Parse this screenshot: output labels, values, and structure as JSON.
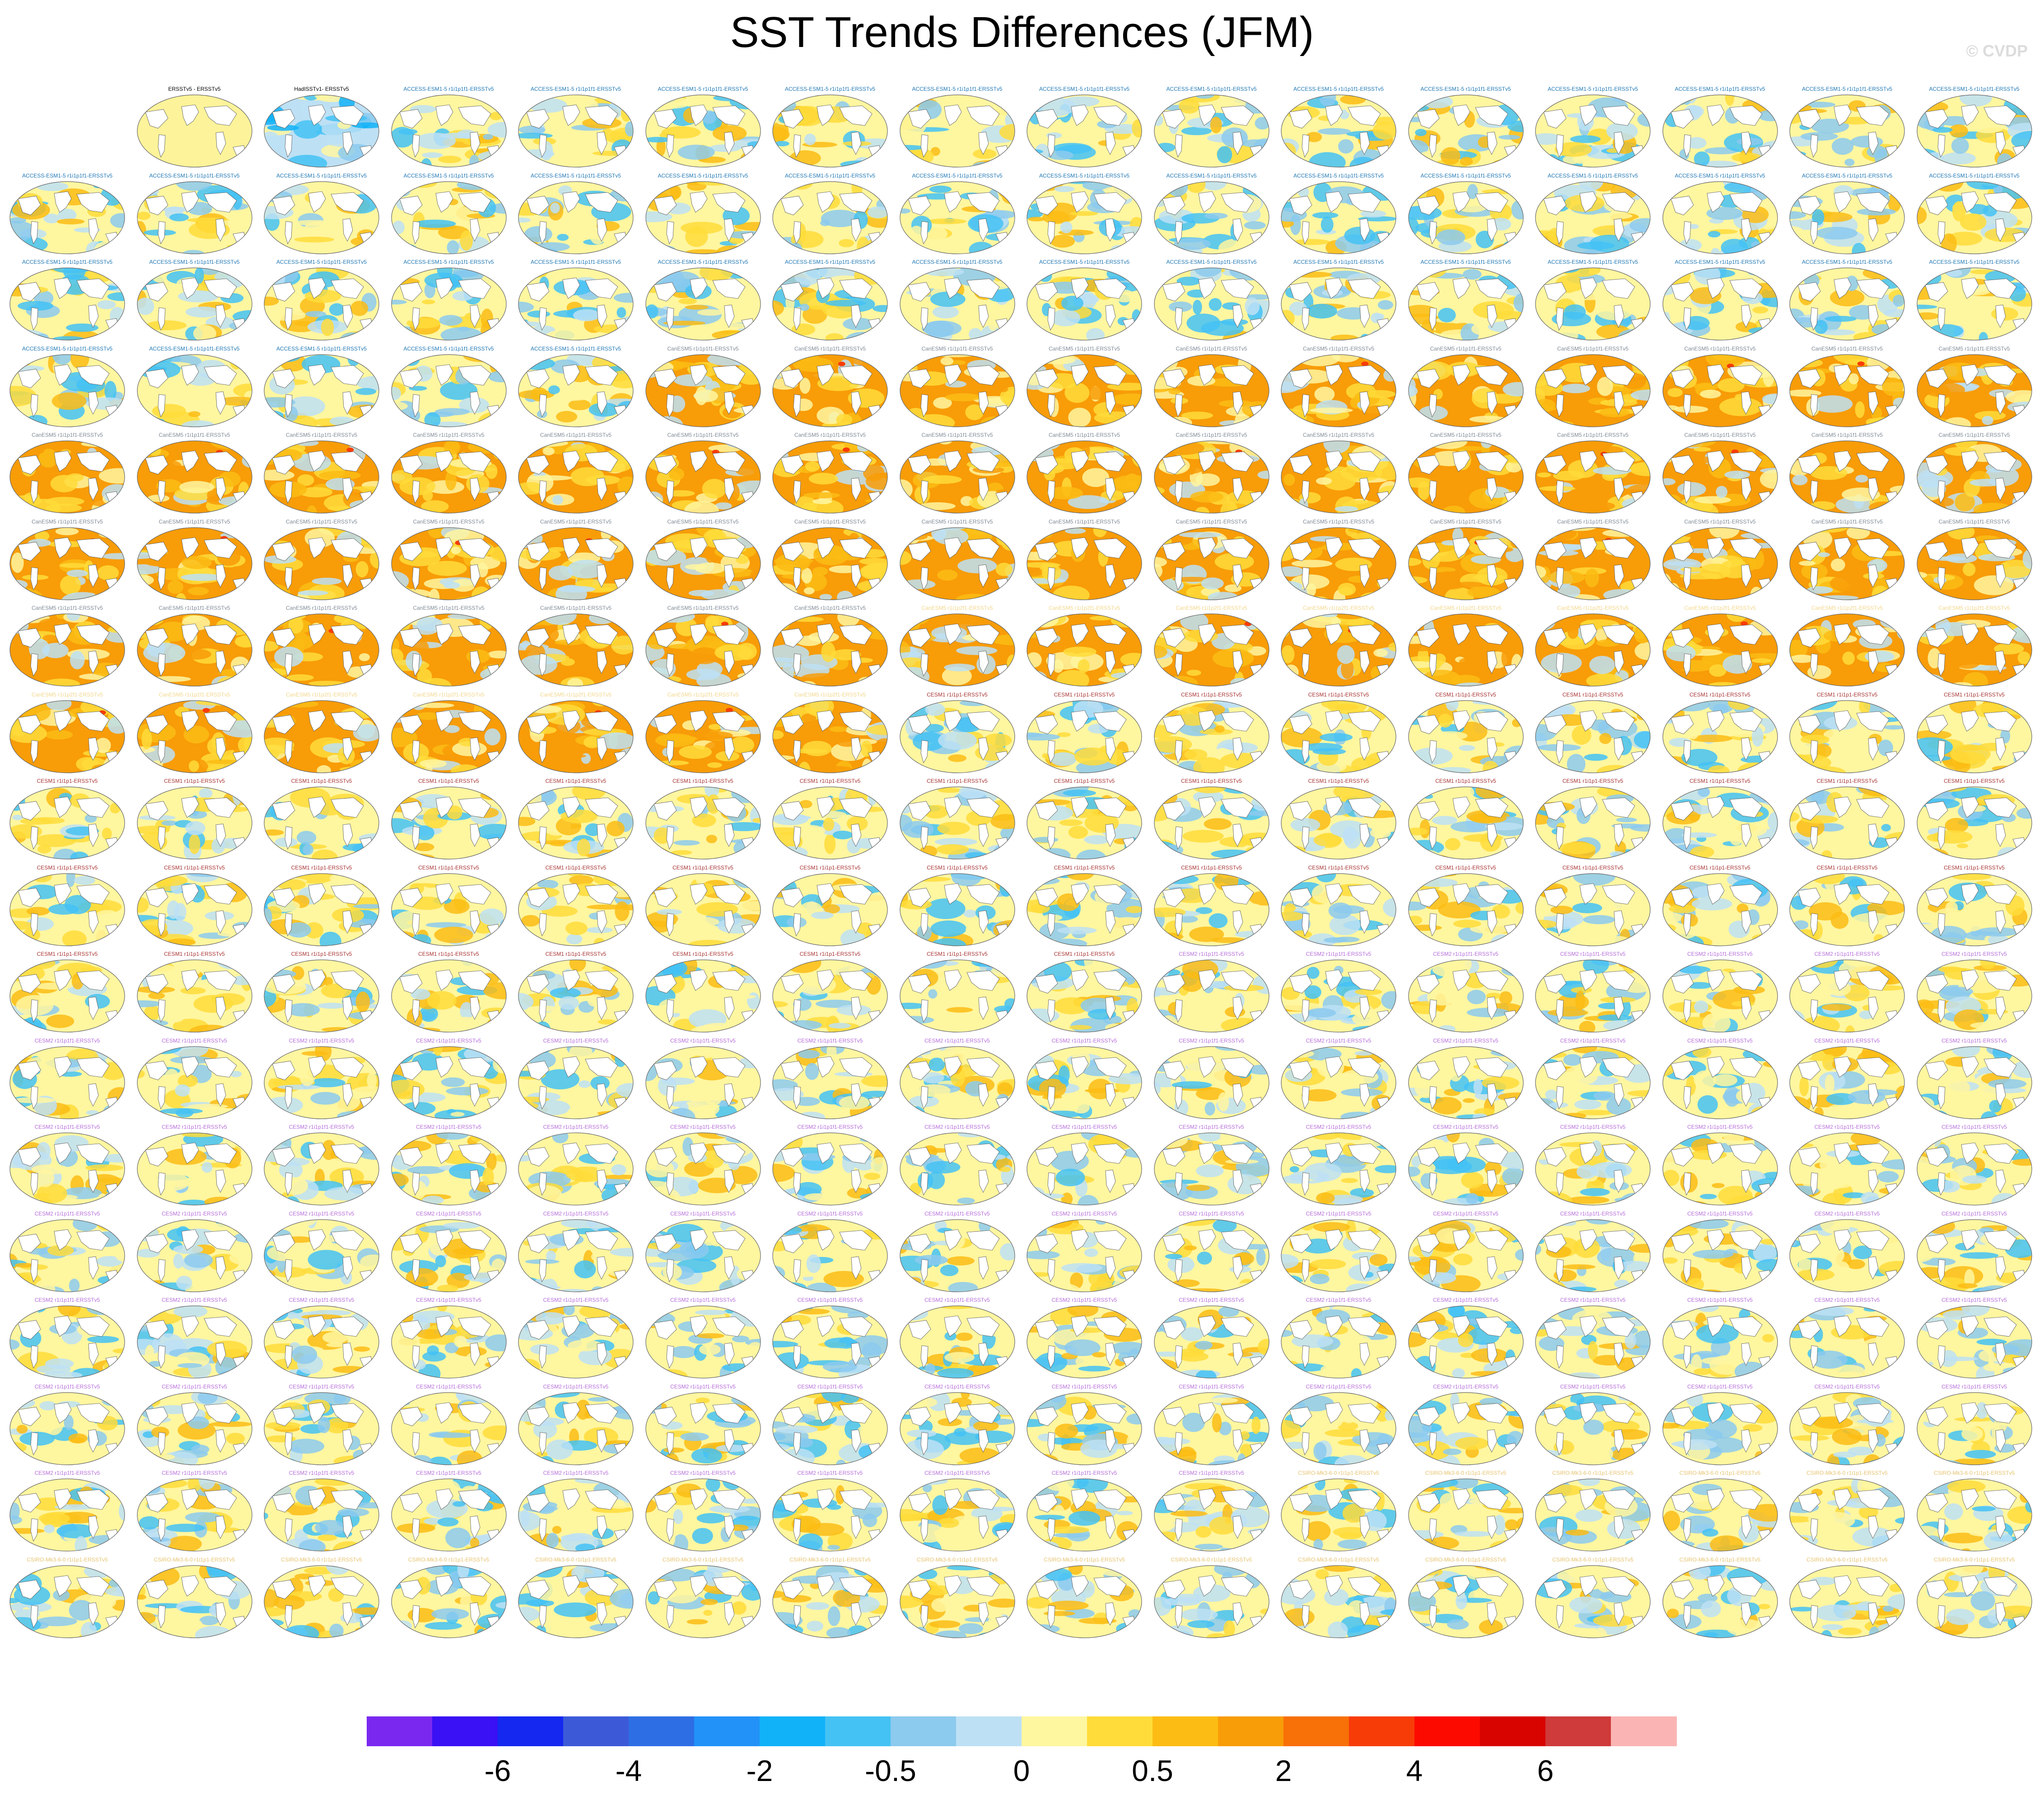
{
  "title": "SST Trends Differences (JFM)",
  "watermark": "© CVDP",
  "colorbar": {
    "colors": [
      "#7a28f0",
      "#3a10f4",
      "#1428f0",
      "#3c5ad8",
      "#2e6ee4",
      "#2292f8",
      "#12b2f8",
      "#44c2f4",
      "#8ccaee",
      "#bde0f4",
      "#fff6a0",
      "#ffdc3a",
      "#fcbc14",
      "#f89c08",
      "#f87008",
      "#f83c08",
      "#fc0a00",
      "#d80400",
      "#cf3a3a",
      "#fab4b4"
    ],
    "tick_labels": [
      "-6",
      "-4",
      "-2",
      "-0.5",
      "0",
      "0.5",
      "2",
      "4",
      "6"
    ]
  },
  "panels": {
    "rows": 18,
    "cols": 16,
    "first_row": [
      {
        "label": "",
        "map": "blank"
      },
      {
        "label": "ERSSTv5 - ERSSTv5",
        "map": "land"
      },
      {
        "label": "HadISSTv1- ERSSTv5",
        "map": "cool"
      }
    ],
    "labels": [
      {
        "from": 3,
        "to": 52,
        "text": "ACCESS-ESM1-5 r1i1p1f1-ERSSTv5",
        "color": "#1f77b4"
      },
      {
        "from": 53,
        "to": 102,
        "text": "CanESM5 r1i1p1f1-ERSSTv5",
        "color": "#7f8a96"
      },
      {
        "from": 103,
        "to": 118,
        "text": "CanESM5 r1i1p2f1-ERSSTv5",
        "color": "#f2d68a"
      },
      {
        "from": 119,
        "to": 168,
        "text": "CESM1 r1i1p1-ERSSTv5",
        "color": "#a83232"
      },
      {
        "from": 169,
        "to": 265,
        "text": "CESM2 r1i1p1f1-ERSSTv5",
        "color": "#b56cd9"
      },
      {
        "from": 266,
        "to": 287,
        "text": "CSIRO-Mk3-6-0 r1i1p1-ERSSTv5",
        "color": "#e6c36e"
      }
    ]
  }
}
